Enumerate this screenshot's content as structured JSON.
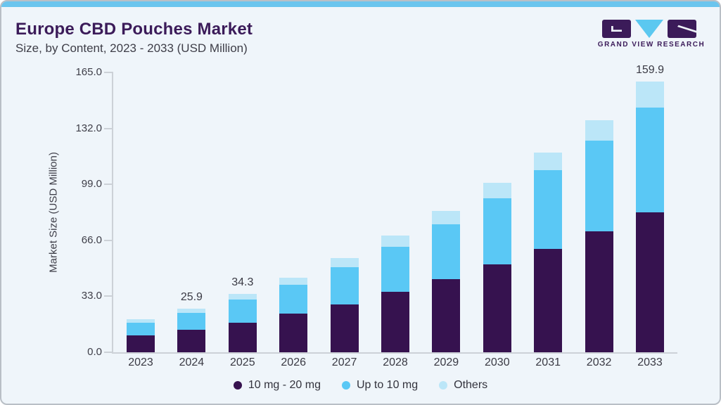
{
  "header": {
    "title": "Europe CBD Pouches Market",
    "subtitle": "Size, by Content, 2023 - 2033 (USD Million)"
  },
  "logo": {
    "text": "GRAND VIEW RESEARCH"
  },
  "colors": {
    "card_background": "#eff5fa",
    "top_accent": "#6bc5ee",
    "brand_purple": "#3b1b59",
    "axis_line": "#ccd1d7",
    "text_dark": "#3a3a44"
  },
  "chart_data": {
    "type": "bar",
    "stacked": true,
    "title": "Europe CBD Pouches Market Size, by Content, 2023 - 2033 (USD Million)",
    "ylabel": "Market Size (USD Million)",
    "ylim": [
      0,
      165
    ],
    "yticks": [
      "0.0",
      "33.0",
      "66.0",
      "99.0",
      "132.0",
      "165.0"
    ],
    "grid": false,
    "legend_position": "bottom",
    "categories": [
      "2023",
      "2024",
      "2025",
      "2026",
      "2027",
      "2028",
      "2029",
      "2030",
      "2031",
      "2032",
      "2033"
    ],
    "series": [
      {
        "name": "10 mg - 20 mg",
        "color": "#36124f",
        "values": [
          10.0,
          13.4,
          17.6,
          22.7,
          28.4,
          35.5,
          43.1,
          51.7,
          61.1,
          71.3,
          82.5
        ]
      },
      {
        "name": "Up to 10 mg",
        "color": "#5ac8f5",
        "values": [
          7.5,
          9.9,
          13.4,
          17.1,
          21.9,
          26.9,
          32.6,
          39.1,
          46.2,
          53.4,
          62.0
        ]
      },
      {
        "name": "Others",
        "color": "#bbe6f8",
        "values": [
          2.1,
          2.6,
          3.3,
          4.3,
          5.2,
          6.5,
          7.9,
          9.3,
          10.6,
          12.1,
          15.4
        ]
      }
    ],
    "totals": [
      19.6,
      25.9,
      34.3,
      44.1,
      55.5,
      68.9,
      83.6,
      100.1,
      117.9,
      136.8,
      159.9
    ],
    "bar_labels": [
      "",
      "25.9",
      "34.3",
      "",
      "",
      "",
      "",
      "",
      "",
      "",
      "159.9"
    ]
  }
}
